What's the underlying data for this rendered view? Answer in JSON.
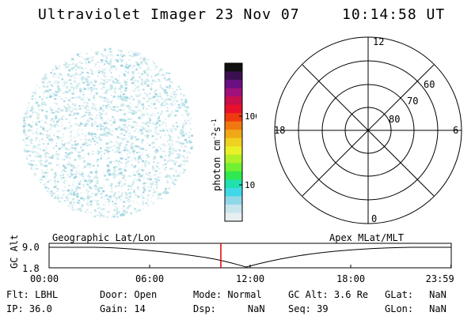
{
  "header": {
    "instrument": "Ultraviolet Imager",
    "date": "23 Nov 07",
    "time": "10:14:58 UT"
  },
  "colorbar": {
    "unit_label": "photon cm",
    "unit_exp1": "-2",
    "unit_s": "s",
    "unit_exp2": "-1",
    "ticks": [
      "100",
      "10"
    ],
    "colors": [
      "#101010",
      "#3a1050",
      "#6a1080",
      "#a0107a",
      "#c8104a",
      "#e8102a",
      "#f03a10",
      "#f07810",
      "#f0a818",
      "#f0d020",
      "#e8f028",
      "#b0f028",
      "#70f030",
      "#30e850",
      "#20e0b0",
      "#40d8e8",
      "#90d8e8",
      "#c8e4ec",
      "#e8eef0"
    ]
  },
  "polar": {
    "mlt_labels": {
      "top": "12",
      "right": "6",
      "bottom": "0",
      "left": "18"
    },
    "lat_labels": [
      "60",
      "70",
      "80"
    ]
  },
  "timeline": {
    "left_label": "Geographic Lat/Lon",
    "right_label": "Apex MLat/MLT",
    "axis_label": "GC Alt",
    "y_ticks": [
      "9.0",
      "1.8"
    ],
    "x_ticks": [
      "00:00",
      "06:00",
      "12:00",
      "18:00",
      "23:59"
    ],
    "marker_time_hours": 10.25,
    "marker_color": "#e00000"
  },
  "info": {
    "flt_label": "Flt:",
    "flt_value": "LBHL",
    "ip_label": "IP:",
    "ip_value": "36.0",
    "door_label": "Door:",
    "door_value": "Open",
    "gain_label": "Gain:",
    "gain_value": "14",
    "mode_label": "Mode:",
    "mode_value": "Normal",
    "dsp_label": "Dsp:",
    "dsp_value": "NaN",
    "gcalt_label": "GC Alt:",
    "gcalt_value": "3.6 Re",
    "seq_label": "Seq:",
    "seq_value": "39",
    "glat_label": "GLat:",
    "glat_value": "NaN",
    "glon_label": "GLon:",
    "glon_value": "NaN"
  }
}
